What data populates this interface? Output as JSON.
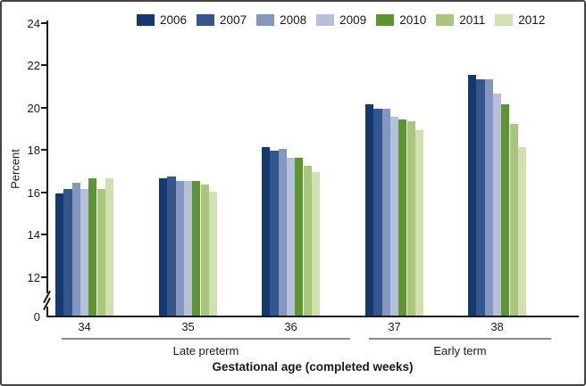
{
  "figure": {
    "border_color": "#454545",
    "background": "#ffffff"
  },
  "chart_data": {
    "type": "bar",
    "title": "",
    "ylabel": "Percent",
    "xlabel": "Gestational age (completed weeks)",
    "categories": [
      "34",
      "35",
      "36",
      "37",
      "38"
    ],
    "category_groups": [
      {
        "label": "Late preterm",
        "weeks": [
          "34",
          "35",
          "36"
        ]
      },
      {
        "label": "Early term",
        "weeks": [
          "37",
          "38"
        ]
      }
    ],
    "series": [
      {
        "name": "2006",
        "color": "#14396f",
        "values": [
          15.9,
          16.6,
          18.1,
          20.1,
          21.5
        ]
      },
      {
        "name": "2007",
        "color": "#33568e",
        "values": [
          16.1,
          16.7,
          17.9,
          19.9,
          21.3
        ]
      },
      {
        "name": "2008",
        "color": "#8397bf",
        "values": [
          16.4,
          16.5,
          18.0,
          19.9,
          21.3
        ]
      },
      {
        "name": "2009",
        "color": "#b6c0db",
        "values": [
          16.1,
          16.5,
          17.6,
          19.5,
          20.6
        ]
      },
      {
        "name": "2010",
        "color": "#5d9630",
        "values": [
          16.6,
          16.5,
          17.6,
          19.4,
          20.1
        ]
      },
      {
        "name": "2011",
        "color": "#a9c77c",
        "values": [
          16.1,
          16.3,
          17.2,
          19.3,
          19.2
        ]
      },
      {
        "name": "2012",
        "color": "#d0e0b0",
        "values": [
          16.6,
          16.0,
          16.9,
          18.9,
          18.1
        ]
      }
    ],
    "yticks": [
      0,
      12,
      14,
      16,
      18,
      20,
      22,
      24
    ],
    "ylim_display": [
      12,
      24
    ],
    "axis_break": true,
    "grid": false,
    "legend_position": "top"
  }
}
